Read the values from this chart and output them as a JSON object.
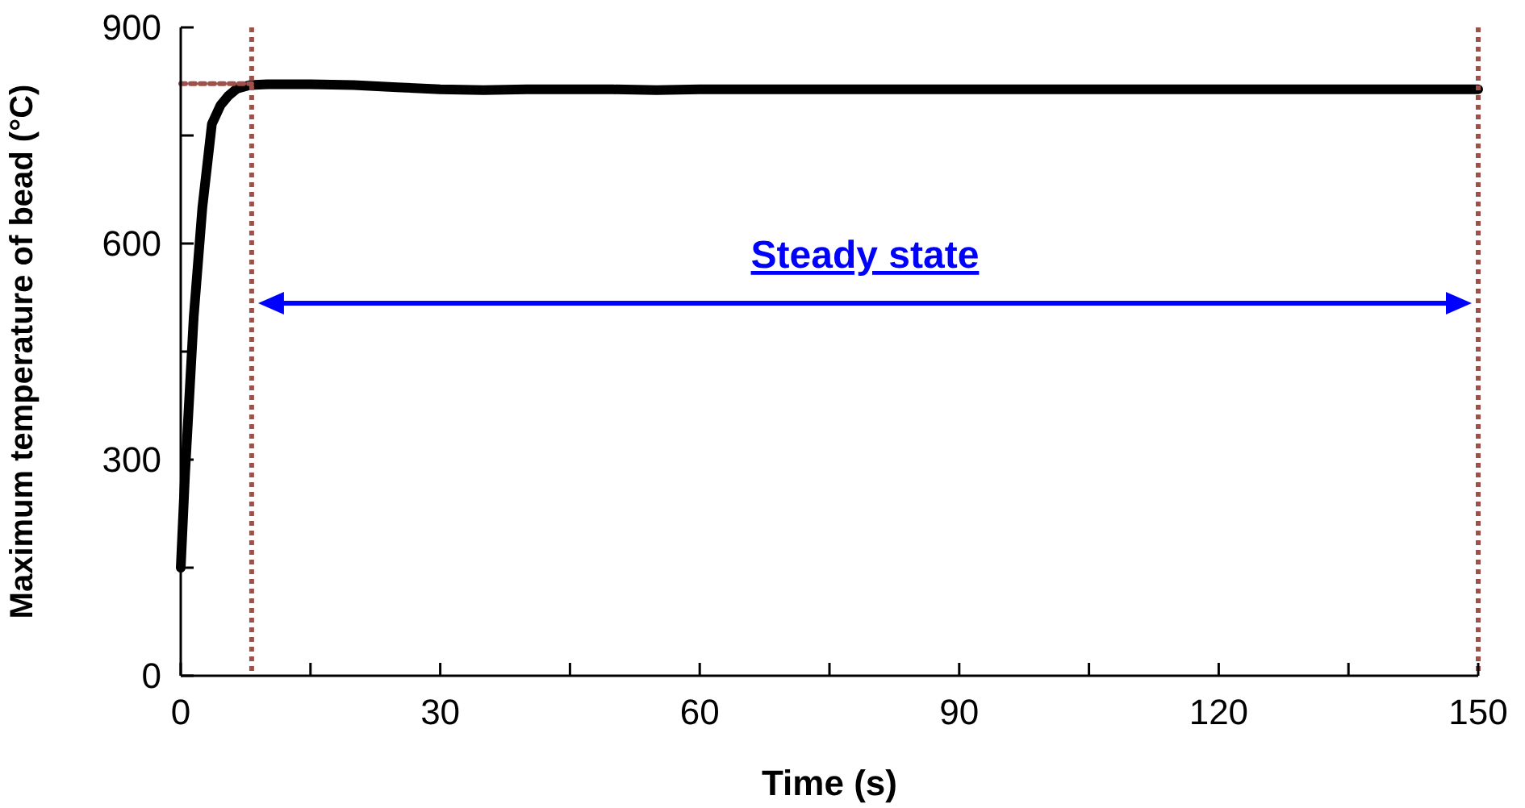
{
  "chart_data": {
    "type": "line",
    "xlabel": "Time (s)",
    "ylabel": "Maximum temperature of bead (°C)",
    "xlim": [
      0,
      150
    ],
    "ylim": [
      0,
      900
    ],
    "xticks": [
      0,
      {
        "value": 15,
        "label": null
      },
      30,
      {
        "value": 45,
        "label": null
      },
      60,
      {
        "value": 75,
        "label": null
      },
      90,
      {
        "value": 105,
        "label": null
      },
      120,
      {
        "value": 135,
        "label": null
      },
      150
    ],
    "yticks": [
      0,
      {
        "value": 150,
        "label": null
      },
      300,
      {
        "value": 450,
        "label": null
      },
      600,
      {
        "value": 750,
        "label": null
      },
      900
    ],
    "line_style": "solid",
    "series": [
      {
        "color": "#000000",
        "x": [
          0,
          0.5,
          1.5,
          2.5,
          3.6,
          4.6,
          5.5,
          6.5,
          8,
          10,
          15,
          20,
          25,
          30,
          35,
          40,
          50,
          55,
          60,
          70,
          90,
          120,
          150
        ],
        "values": [
          150,
          280,
          498,
          650,
          766,
          792,
          805,
          815,
          820,
          821,
          821,
          820,
          817,
          814,
          813,
          814,
          814,
          813,
          814,
          814,
          814,
          814,
          814
        ]
      },
      {
        "color": "#a0504a",
        "line_style": "dotted",
        "x": [
          0,
          8.2
        ],
        "values": [
          822,
          822
        ]
      }
    ],
    "ref_lines": [
      {
        "axis": "x",
        "value": 8.2,
        "color": "#a0504a",
        "line_style": "dotted"
      },
      {
        "axis": "x",
        "value": 150,
        "color": "#a0504a",
        "line_style": "dotted"
      }
    ],
    "annotations": [
      "Steady state"
    ]
  }
}
